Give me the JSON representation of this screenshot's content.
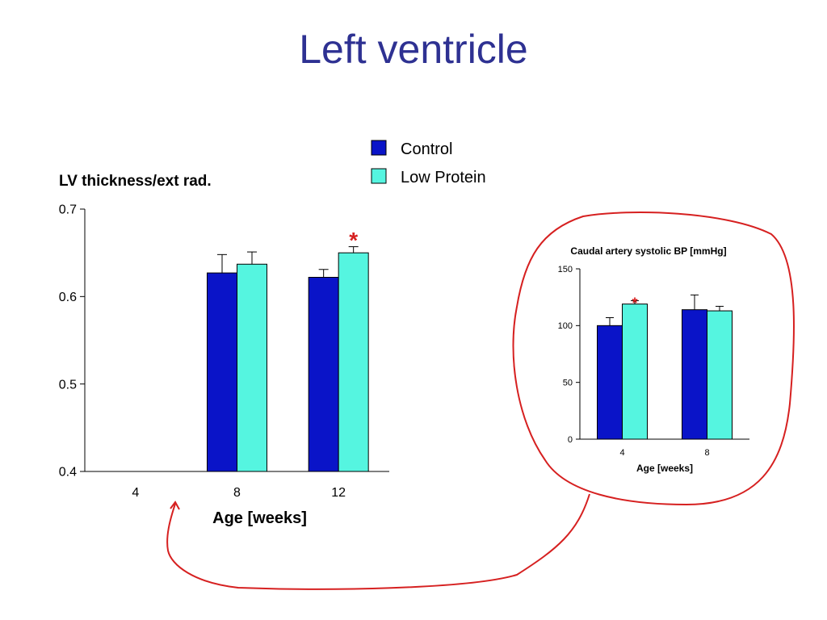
{
  "slide": {
    "title": "Left ventricle"
  },
  "colors": {
    "control": "#0a14c8",
    "low_protein": "#55f5e0",
    "annotation": "#d62020",
    "title": "#2e3192"
  },
  "legend": [
    {
      "label": "Control",
      "color": "#0a14c8"
    },
    {
      "label": "Low Protein",
      "color": "#55f5e0"
    }
  ],
  "chart_data": [
    {
      "type": "bar",
      "title": "",
      "ylabel": "LV thickness/ext rad.",
      "xlabel": "Age [weeks]",
      "categories": [
        "4",
        "8",
        "12"
      ],
      "ylim": [
        0.4,
        0.7
      ],
      "yticks": [
        "0.4",
        "0.5",
        "0.6",
        "0.7"
      ],
      "series": [
        {
          "name": "Control",
          "values": [
            null,
            0.627,
            0.622
          ],
          "errors": [
            null,
            0.021,
            0.009
          ]
        },
        {
          "name": "Low Protein",
          "values": [
            null,
            0.637,
            0.65
          ],
          "errors": [
            null,
            0.014,
            0.007
          ]
        }
      ],
      "annotations": [
        {
          "text": "*",
          "category": "12",
          "series": "Low Protein"
        }
      ]
    },
    {
      "type": "bar",
      "title": "Caudal artery systolic BP [mmHg]",
      "ylabel": "",
      "xlabel": "Age [weeks]",
      "categories": [
        "4",
        "8"
      ],
      "ylim": [
        0,
        150
      ],
      "yticks": [
        "0",
        "50",
        "100",
        "150"
      ],
      "series": [
        {
          "name": "Control",
          "values": [
            100,
            114
          ],
          "errors": [
            7,
            13
          ]
        },
        {
          "name": "Low Protein",
          "values": [
            119,
            113
          ],
          "errors": [
            3,
            4
          ]
        }
      ],
      "annotations": [
        {
          "text": "*",
          "category": "4",
          "series": "Low Protein"
        }
      ]
    }
  ]
}
